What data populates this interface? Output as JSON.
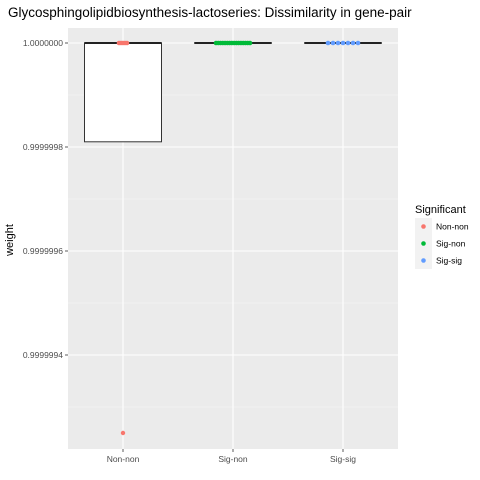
{
  "chart_data": {
    "type": "box",
    "title": "Glycosphingolipidbiosynthesis-lactoseries: Dissimilarity in gene-pair",
    "xlabel": "",
    "ylabel": "weight",
    "categories": [
      "Non-non",
      "Sig-non",
      "Sig-sig"
    ],
    "ylim": [
      0.99999925,
      1.0
    ],
    "yticks": [
      0.9999994,
      0.9999996,
      0.9999998,
      1.0
    ],
    "ytick_labels": [
      "0.9999994",
      "0.9999996",
      0.9999998,
      "1.0000000"
    ],
    "grid": true,
    "legend": {
      "title": "Significant",
      "placement": "right",
      "entries": [
        {
          "label": "Non-non",
          "color": "#F8766D"
        },
        {
          "label": "Sig-non",
          "color": "#00BA38"
        },
        {
          "label": "Sig-sig",
          "color": "#619CFF"
        }
      ]
    },
    "boxes": [
      {
        "category": "Non-non",
        "q1": 0.99999981,
        "median": 1.0,
        "q3": 1.0,
        "whisker_low": 0.99999981,
        "whisker_high": 1.0,
        "outliers": [
          0.99999925
        ],
        "color": "#F8766D",
        "points": [
          1.0,
          1.0,
          1.0,
          1.0,
          1.0
        ]
      },
      {
        "category": "Sig-non",
        "q1": 1.0,
        "median": 1.0,
        "q3": 1.0,
        "whisker_low": 1.0,
        "whisker_high": 1.0,
        "outliers": [],
        "color": "#00BA38",
        "points": [
          1.0,
          1.0,
          1.0,
          1.0,
          1.0,
          1.0,
          1.0,
          1.0,
          1.0,
          1.0,
          1.0,
          1.0,
          1.0,
          1.0,
          1.0,
          1.0
        ]
      },
      {
        "category": "Sig-sig",
        "q1": 1.0,
        "median": 1.0,
        "q3": 1.0,
        "whisker_low": 1.0,
        "whisker_high": 1.0,
        "outliers": [],
        "color": "#619CFF",
        "points": [
          1.0,
          1.0,
          1.0,
          1.0,
          1.0,
          1.0,
          1.0
        ]
      }
    ]
  }
}
